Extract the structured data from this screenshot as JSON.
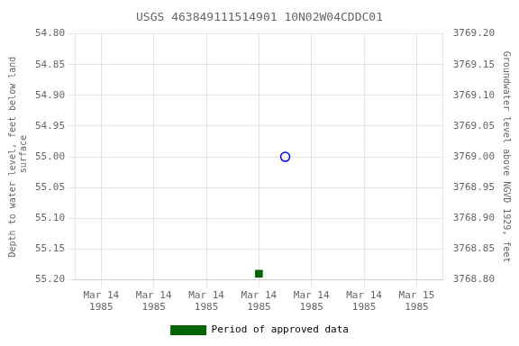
{
  "chart_data": {
    "type": "scatter",
    "title": "USGS 463849111514901 10N02W04CDDC01",
    "y_label": "Depth to water level, feet below land\n surface",
    "y2_label": "Groundwater level above NGVD 1929, feet",
    "xlim": [
      -0.5,
      6.5
    ],
    "xticks": [
      {
        "value": 0,
        "label": "Mar 14\n1985"
      },
      {
        "value": 1,
        "label": "Mar 14\n1985"
      },
      {
        "value": 2,
        "label": "Mar 14\n1985"
      },
      {
        "value": 3,
        "label": "Mar 14\n1985"
      },
      {
        "value": 4,
        "label": "Mar 14\n1985"
      },
      {
        "value": 5,
        "label": "Mar 14\n1985"
      },
      {
        "value": 6,
        "label": "Mar 15\n1985"
      }
    ],
    "ylim": [
      55.2,
      54.8
    ],
    "yticks": [
      {
        "value": 54.8,
        "label": "54.80"
      },
      {
        "value": 54.85,
        "label": "54.85"
      },
      {
        "value": 54.9,
        "label": "54.90"
      },
      {
        "value": 54.95,
        "label": "54.95"
      },
      {
        "value": 55.0,
        "label": "55.00"
      },
      {
        "value": 55.05,
        "label": "55.05"
      },
      {
        "value": 55.1,
        "label": "55.10"
      },
      {
        "value": 55.15,
        "label": "55.15"
      },
      {
        "value": 55.2,
        "label": "55.20"
      }
    ],
    "y2lim": [
      3768.8,
      3769.2
    ],
    "y2ticks": [
      {
        "value": 3768.8,
        "label": "3768.80"
      },
      {
        "value": 3768.85,
        "label": "3768.85"
      },
      {
        "value": 3768.9,
        "label": "3768.90"
      },
      {
        "value": 3768.95,
        "label": "3768.95"
      },
      {
        "value": 3769.0,
        "label": "3769.00"
      },
      {
        "value": 3769.05,
        "label": "3769.05"
      },
      {
        "value": 3769.1,
        "label": "3769.10"
      },
      {
        "value": 3769.15,
        "label": "3769.15"
      },
      {
        "value": 3769.2,
        "label": "3769.20"
      }
    ],
    "series": [
      {
        "x": [
          3.5
        ],
        "values": [
          55.0
        ],
        "color": "blue",
        "marker": "circle_open"
      },
      {
        "name": "Period of approved data",
        "x": [
          3.0
        ],
        "values": [
          55.19
        ],
        "color": "#006400",
        "marker": "square"
      }
    ],
    "grid": true,
    "legend": "bottom"
  }
}
